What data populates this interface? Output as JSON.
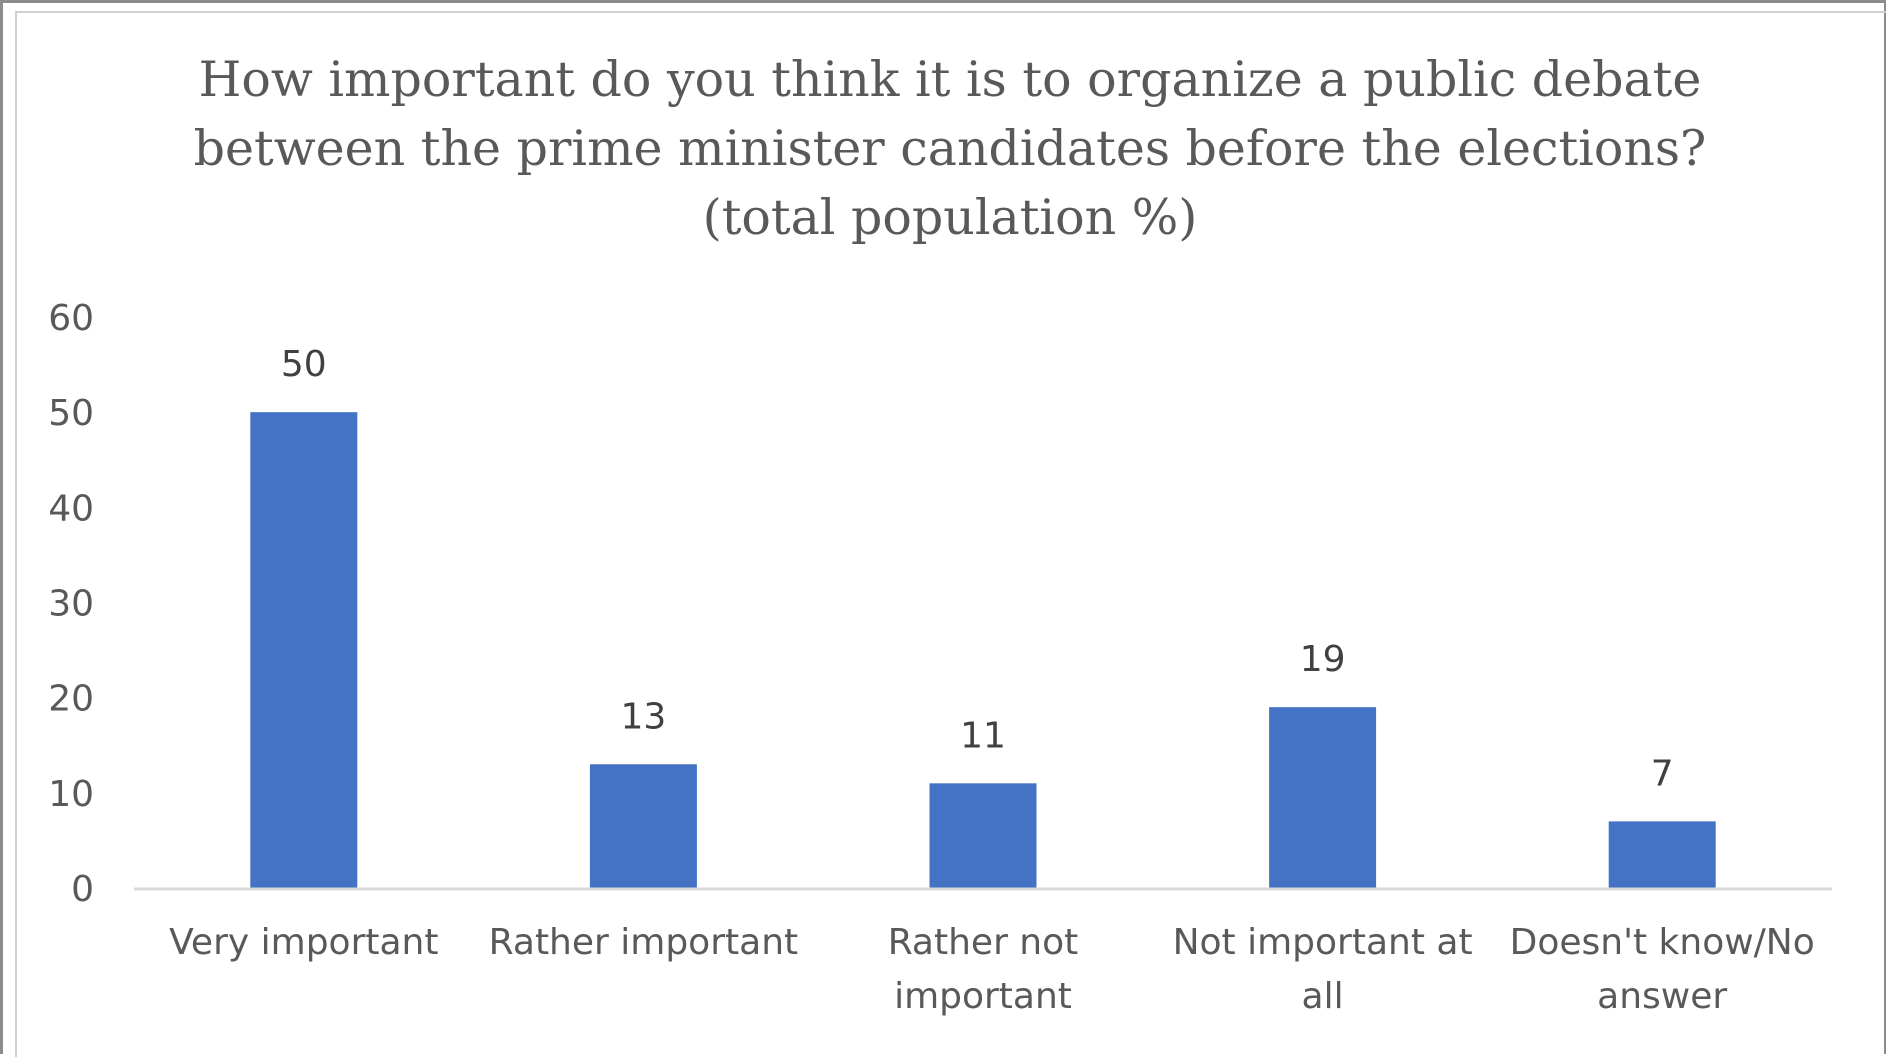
{
  "chart_data": {
    "type": "bar",
    "title": "How important do you think it is to organize a public debate between the prime minister candidates before the elections? (total population %)",
    "categories": [
      "Very important",
      "Rather important",
      "Rather not important",
      "Not important at all",
      "Doesn't know/No answer"
    ],
    "values": [
      50,
      13,
      11,
      19,
      7
    ],
    "data_labels": [
      "50",
      "13",
      "11",
      "19",
      "7"
    ],
    "yticks": [
      "0",
      "10",
      "20",
      "30",
      "40",
      "50",
      "60"
    ],
    "ylim": [
      0,
      60
    ],
    "xlabel": "",
    "ylabel": "",
    "grid": false,
    "legend": "none",
    "bar_color": "#4472C4",
    "axis_color": "#d9d9d9"
  }
}
